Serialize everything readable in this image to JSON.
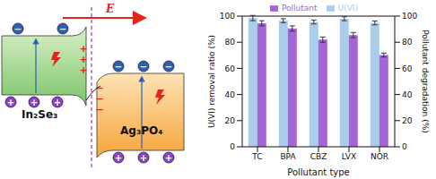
{
  "chart_data": {
    "type": "bar",
    "categories": [
      "TC",
      "BPA",
      "CBZ",
      "LVX",
      "NOR"
    ],
    "series": [
      {
        "name": "U(VI)",
        "color": "#a9cdeb",
        "values": [
          98.5,
          96.5,
          95.5,
          98,
          94.8
        ],
        "errors": [
          2,
          1.5,
          1.5,
          1.5,
          1.5
        ]
      },
      {
        "name": "Pollutant",
        "color": "#a565d6",
        "values": [
          94.5,
          90.5,
          82,
          85.5,
          70.2
        ],
        "errors": [
          2,
          2,
          2,
          2,
          1.5
        ],
        "axis": "y2"
      }
    ],
    "xlabel": "Pollutant type",
    "ylabel": "U(VI) removal ratio (%)",
    "y2label": "Pollutant degradation (%)",
    "ylim": [
      0,
      100
    ],
    "yticks": [
      0,
      20,
      40,
      60,
      80,
      100
    ],
    "y2lim": [
      0,
      100
    ],
    "y2ticks": [
      0,
      20,
      40,
      60,
      80,
      100
    ],
    "legend": "top",
    "grid": false
  },
  "diagram": {
    "field_label": "E",
    "left_material": "In₂Se₃",
    "right_material": "Ag₃PO₄",
    "electron_sign": "−",
    "hole_sign": "+",
    "left_interface_sign": "+",
    "right_interface_sign": "−"
  }
}
